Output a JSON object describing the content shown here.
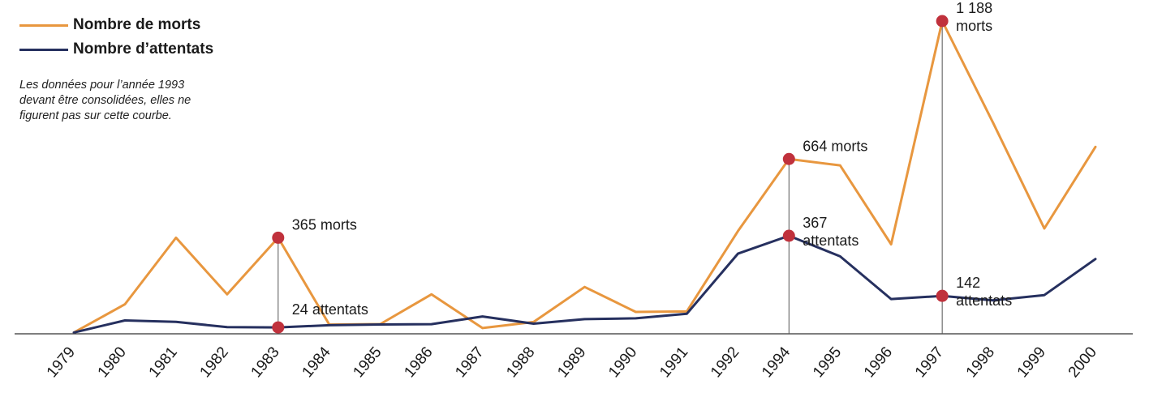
{
  "legend": {
    "deaths_label": "Nombre de morts",
    "attacks_label": "Nombre d’attentats"
  },
  "note": {
    "line1": "Les données pour l’année 1993",
    "line2": "devant être consolidées, elles ne",
    "line3": "figurent pas sur cette courbe."
  },
  "colors": {
    "deaths": "#E8973F",
    "attacks": "#26305F",
    "highlight": "#C0313C",
    "axis": "#333333",
    "guide": "#555555"
  },
  "chart_data": {
    "type": "line",
    "title": "",
    "xlabel": "",
    "ylabel": "",
    "categories": [
      "1979",
      "1980",
      "1981",
      "1982",
      "1983",
      "1984",
      "1985",
      "1986",
      "1987",
      "1988",
      "1989",
      "1990",
      "1991",
      "1992",
      "1994",
      "1995",
      "1996",
      "1997",
      "1998",
      "1999",
      "2000"
    ],
    "series": [
      {
        "name": "Nombre de morts",
        "values": [
          5,
          112,
          365,
          150,
          365,
          35,
          37,
          150,
          22,
          45,
          178,
          83,
          85,
          390,
          664,
          640,
          340,
          1188,
          800,
          400,
          710
        ],
        "unit": "morts"
      },
      {
        "name": "Nombre d’attentats",
        "values": [
          5,
          50,
          45,
          25,
          24,
          32,
          35,
          36,
          65,
          38,
          55,
          58,
          75,
          300,
          367,
          290,
          130,
          142,
          125,
          145,
          280
        ],
        "unit": "attentats"
      }
    ],
    "annotations": [
      {
        "category": "1983",
        "series": "Nombre de morts",
        "label": "365 morts"
      },
      {
        "category": "1983",
        "series": "Nombre d’attentats",
        "label": "24 attentats"
      },
      {
        "category": "1994",
        "series": "Nombre de morts",
        "label": "664 morts"
      },
      {
        "category": "1994",
        "series": "Nombre d’attentats",
        "label": "367",
        "label2": "attentats"
      },
      {
        "category": "1997",
        "series": "Nombre de morts",
        "label": "1 188",
        "label2": "morts"
      },
      {
        "category": "1997",
        "series": "Nombre d’attentats",
        "label": "142",
        "label2": "attentats"
      }
    ],
    "grid": false,
    "legend_position": "top-left"
  }
}
